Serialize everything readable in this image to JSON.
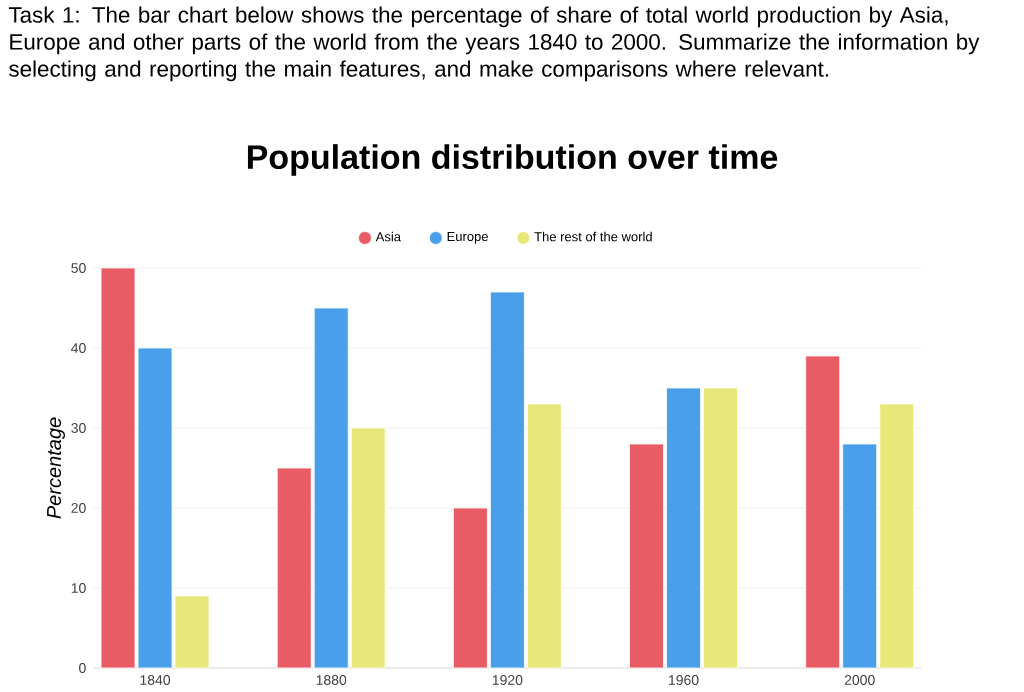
{
  "chart_data": {
    "type": "bar",
    "title": "Population distribution over time",
    "annotations": [
      "Task 1: The bar chart below shows the percentage of share of total world production by Asia, Europe and other parts of the world from the years 1840 to 2000. Summarize the information by selecting and reporting the main features, and make comparisons where relevant."
    ],
    "categories": [
      "1840",
      "1880",
      "1920",
      "1960",
      "2000"
    ],
    "series": [
      {
        "name": "Asia",
        "color": "#e85c66",
        "values": [
          50,
          25,
          20,
          28,
          39
        ]
      },
      {
        "name": "Europe",
        "color": "#4a9fea",
        "values": [
          40,
          45,
          47,
          35,
          28
        ]
      },
      {
        "name": "The rest of the world",
        "color": "#e8e87a",
        "values": [
          9,
          30,
          33,
          35,
          33
        ]
      }
    ],
    "ylabel": "Percentage",
    "ylim": [
      0,
      50
    ],
    "yticks": [
      0,
      10,
      20,
      30,
      40,
      50
    ],
    "grid": "y",
    "legend": "top"
  }
}
